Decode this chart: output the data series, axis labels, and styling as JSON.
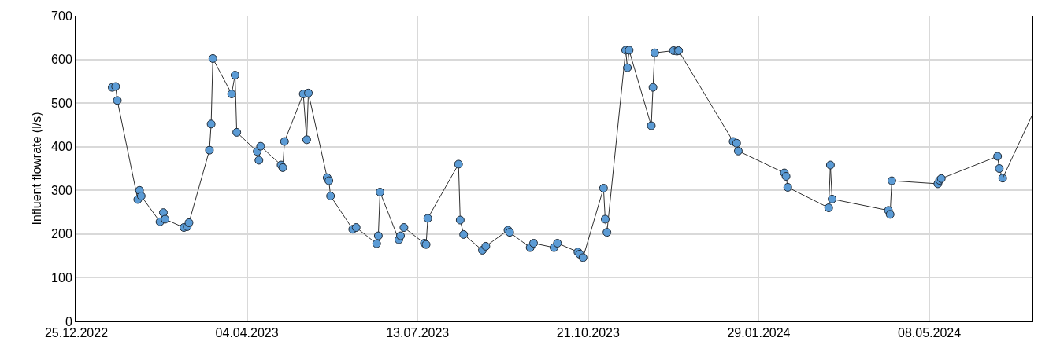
{
  "chart_data": {
    "type": "line",
    "ylabel": "Influent flowrate (l/s)",
    "xlim": [
      "2022-12-25",
      "2024-07-07"
    ],
    "xticks": [
      {
        "value": "2022-12-25",
        "label": "25.12.2022"
      },
      {
        "value": "2023-04-04",
        "label": "04.04.2023"
      },
      {
        "value": "2023-07-13",
        "label": "13.07.2023"
      },
      {
        "value": "2023-10-21",
        "label": "21.10.2023"
      },
      {
        "value": "2024-01-29",
        "label": "29.01.2024"
      },
      {
        "value": "2024-05-08",
        "label": "08.05.2024"
      }
    ],
    "ylim": [
      0,
      700
    ],
    "yticks": [
      0,
      100,
      200,
      300,
      400,
      500,
      600,
      700
    ],
    "grid": true,
    "marker": "circle",
    "line_style": "solid",
    "series": [
      {
        "color": "#5b9bd5",
        "x": [
          "2023-01-15",
          "2023-01-17",
          "2023-01-18",
          "2023-01-30",
          "2023-01-31",
          "2023-02-01",
          "2023-02-12",
          "2023-02-14",
          "2023-02-15",
          "2023-02-26",
          "2023-02-28",
          "2023-03-01",
          "2023-03-13",
          "2023-03-14",
          "2023-03-15",
          "2023-03-26",
          "2023-03-28",
          "2023-03-29",
          "2023-04-10",
          "2023-04-11",
          "2023-04-12",
          "2023-04-24",
          "2023-04-25",
          "2023-04-26",
          "2023-05-07",
          "2023-05-09",
          "2023-05-10",
          "2023-05-21",
          "2023-05-22",
          "2023-05-23",
          "2023-06-05",
          "2023-06-07",
          "2023-06-19",
          "2023-06-20",
          "2023-06-21",
          "2023-07-02",
          "2023-07-03",
          "2023-07-05",
          "2023-07-17",
          "2023-07-18",
          "2023-07-19",
          "2023-08-06",
          "2023-08-07",
          "2023-08-09",
          "2023-08-20",
          "2023-08-22",
          "2023-09-04",
          "2023-09-05",
          "2023-09-17",
          "2023-09-19",
          "2023-10-01",
          "2023-10-03",
          "2023-10-15",
          "2023-10-16",
          "2023-10-18",
          "2023-10-30",
          "2023-10-31",
          "2023-11-01",
          "2023-11-12",
          "2023-11-13",
          "2023-11-14",
          "2023-11-27",
          "2023-11-28",
          "2023-11-29",
          "2023-12-10",
          "2023-12-12",
          "2023-12-13",
          "2024-01-14",
          "2024-01-16",
          "2024-01-17",
          "2024-02-13",
          "2024-02-14",
          "2024-02-15",
          "2024-03-10",
          "2024-03-11",
          "2024-03-12",
          "2024-04-14",
          "2024-04-15",
          "2024-04-16",
          "2024-05-13",
          "2024-05-14",
          "2024-05-15",
          "2024-06-17",
          "2024-06-18",
          "2024-06-20"
        ],
        "values": [
          536,
          538,
          506,
          279,
          300,
          287,
          228,
          249,
          234,
          215,
          217,
          226,
          392,
          452,
          602,
          521,
          564,
          433,
          389,
          369,
          401,
          358,
          352,
          412,
          521,
          416,
          523,
          329,
          322,
          287,
          211,
          215,
          178,
          196,
          296,
          187,
          196,
          215,
          179,
          176,
          236,
          360,
          232,
          199,
          163,
          172,
          209,
          204,
          169,
          179,
          169,
          179,
          159,
          154,
          146,
          305,
          234,
          204,
          621,
          581,
          621,
          448,
          536,
          615,
          620,
          619,
          620,
          412,
          408,
          390,
          340,
          332,
          307,
          260,
          358,
          280,
          254,
          245,
          322,
          315,
          323,
          327,
          378,
          350,
          328
        ]
      },
      {
        "type": "line",
        "marker": "none",
        "color": "#303030",
        "x": [
          "2024-06-20",
          "2024-07-07"
        ],
        "values": [
          328,
          470
        ]
      }
    ]
  }
}
